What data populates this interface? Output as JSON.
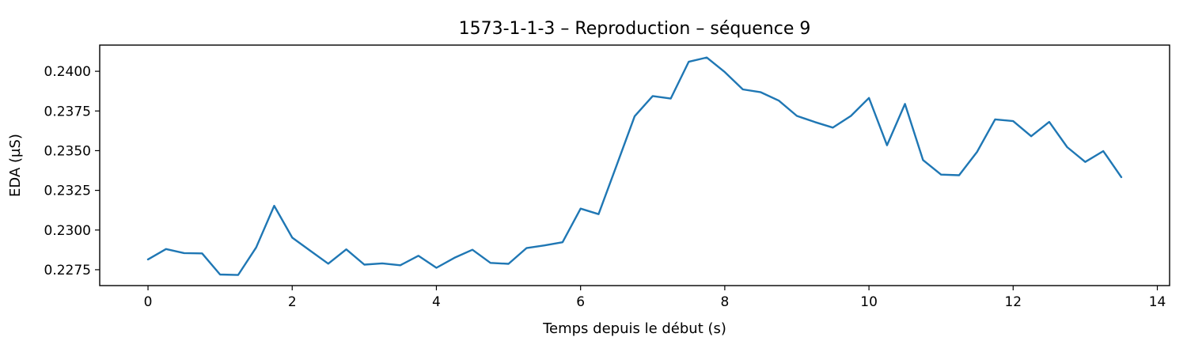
{
  "chart_data": {
    "type": "line",
    "title": "1573-1-1-3 – Reproduction – séquence 9",
    "xlabel": "Temps depuis le début (s)",
    "ylabel": "EDA (µS)",
    "xlim": [
      -0.67,
      14.17
    ],
    "ylim": [
      0.2265,
      0.24165
    ],
    "x_ticks": [
      0,
      2,
      4,
      6,
      8,
      10,
      12,
      14
    ],
    "x_tick_labels": [
      "0",
      "2",
      "4",
      "6",
      "8",
      "10",
      "12",
      "14"
    ],
    "y_ticks": [
      0.2275,
      0.23,
      0.2325,
      0.235,
      0.2375,
      0.24
    ],
    "y_tick_labels": [
      "0.2275",
      "0.2300",
      "0.2325",
      "0.2350",
      "0.2375",
      "0.2400"
    ],
    "grid": false,
    "series": [
      {
        "color": "#1f77b4",
        "x": [
          0,
          0.25,
          0.5,
          0.75,
          1.0,
          1.25,
          1.5,
          1.75,
          2.0,
          2.25,
          2.5,
          2.75,
          3.0,
          3.25,
          3.5,
          3.75,
          4.0,
          4.25,
          4.5,
          4.75,
          5.0,
          5.25,
          5.5,
          5.75,
          6.0,
          6.25,
          6.5,
          6.75,
          7.0,
          7.25,
          7.5,
          7.75,
          8.0,
          8.25,
          8.5,
          8.75,
          9.0,
          9.25,
          9.5,
          9.75,
          10.0,
          10.25,
          10.5,
          10.75,
          11.0,
          11.25,
          11.5,
          11.75,
          12.0,
          12.25,
          12.5,
          12.75,
          13.0,
          13.25,
          13.5
        ],
        "y": [
          0.22815,
          0.2288,
          0.22855,
          0.22853,
          0.2272,
          0.22717,
          0.2289,
          0.23153,
          0.22952,
          0.2287,
          0.22788,
          0.22878,
          0.22782,
          0.2279,
          0.22778,
          0.22838,
          0.22762,
          0.22825,
          0.22876,
          0.22793,
          0.22787,
          0.22886,
          0.22903,
          0.22923,
          0.23135,
          0.231,
          0.23407,
          0.23717,
          0.23844,
          0.23828,
          0.2406,
          0.24087,
          0.23995,
          0.23886,
          0.23868,
          0.23815,
          0.23719,
          0.2368,
          0.23645,
          0.23719,
          0.23832,
          0.23534,
          0.23794,
          0.23441,
          0.23349,
          0.23345,
          0.23492,
          0.23697,
          0.23686,
          0.23591,
          0.23681,
          0.23522,
          0.23429,
          0.23497,
          0.23333
        ]
      }
    ]
  }
}
